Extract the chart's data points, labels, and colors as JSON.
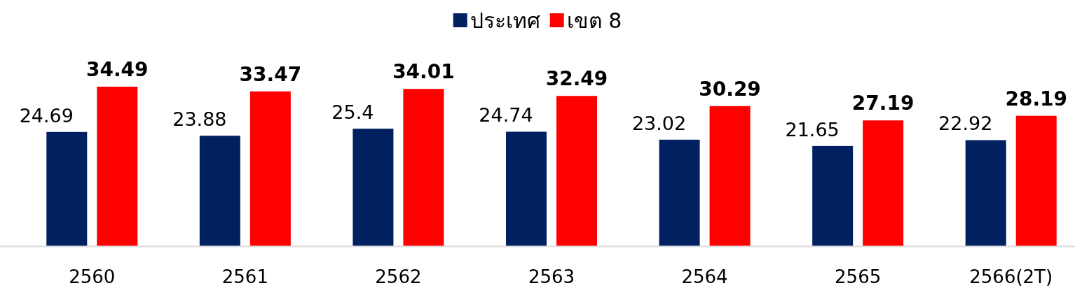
{
  "chart_data": {
    "type": "bar",
    "categories": [
      "2560",
      "2561",
      "2562",
      "2563",
      "2564",
      "2565",
      "2566(2T)"
    ],
    "series": [
      {
        "name": "ประเทศ",
        "color": "#002060",
        "values": [
          24.69,
          23.88,
          25.4,
          24.74,
          23.02,
          21.65,
          22.92
        ]
      },
      {
        "name": "เขต 8",
        "color": "#ff0000",
        "values": [
          34.49,
          33.47,
          34.01,
          32.49,
          30.29,
          27.19,
          28.19
        ]
      }
    ],
    "data_labels": true,
    "legend": "top"
  }
}
